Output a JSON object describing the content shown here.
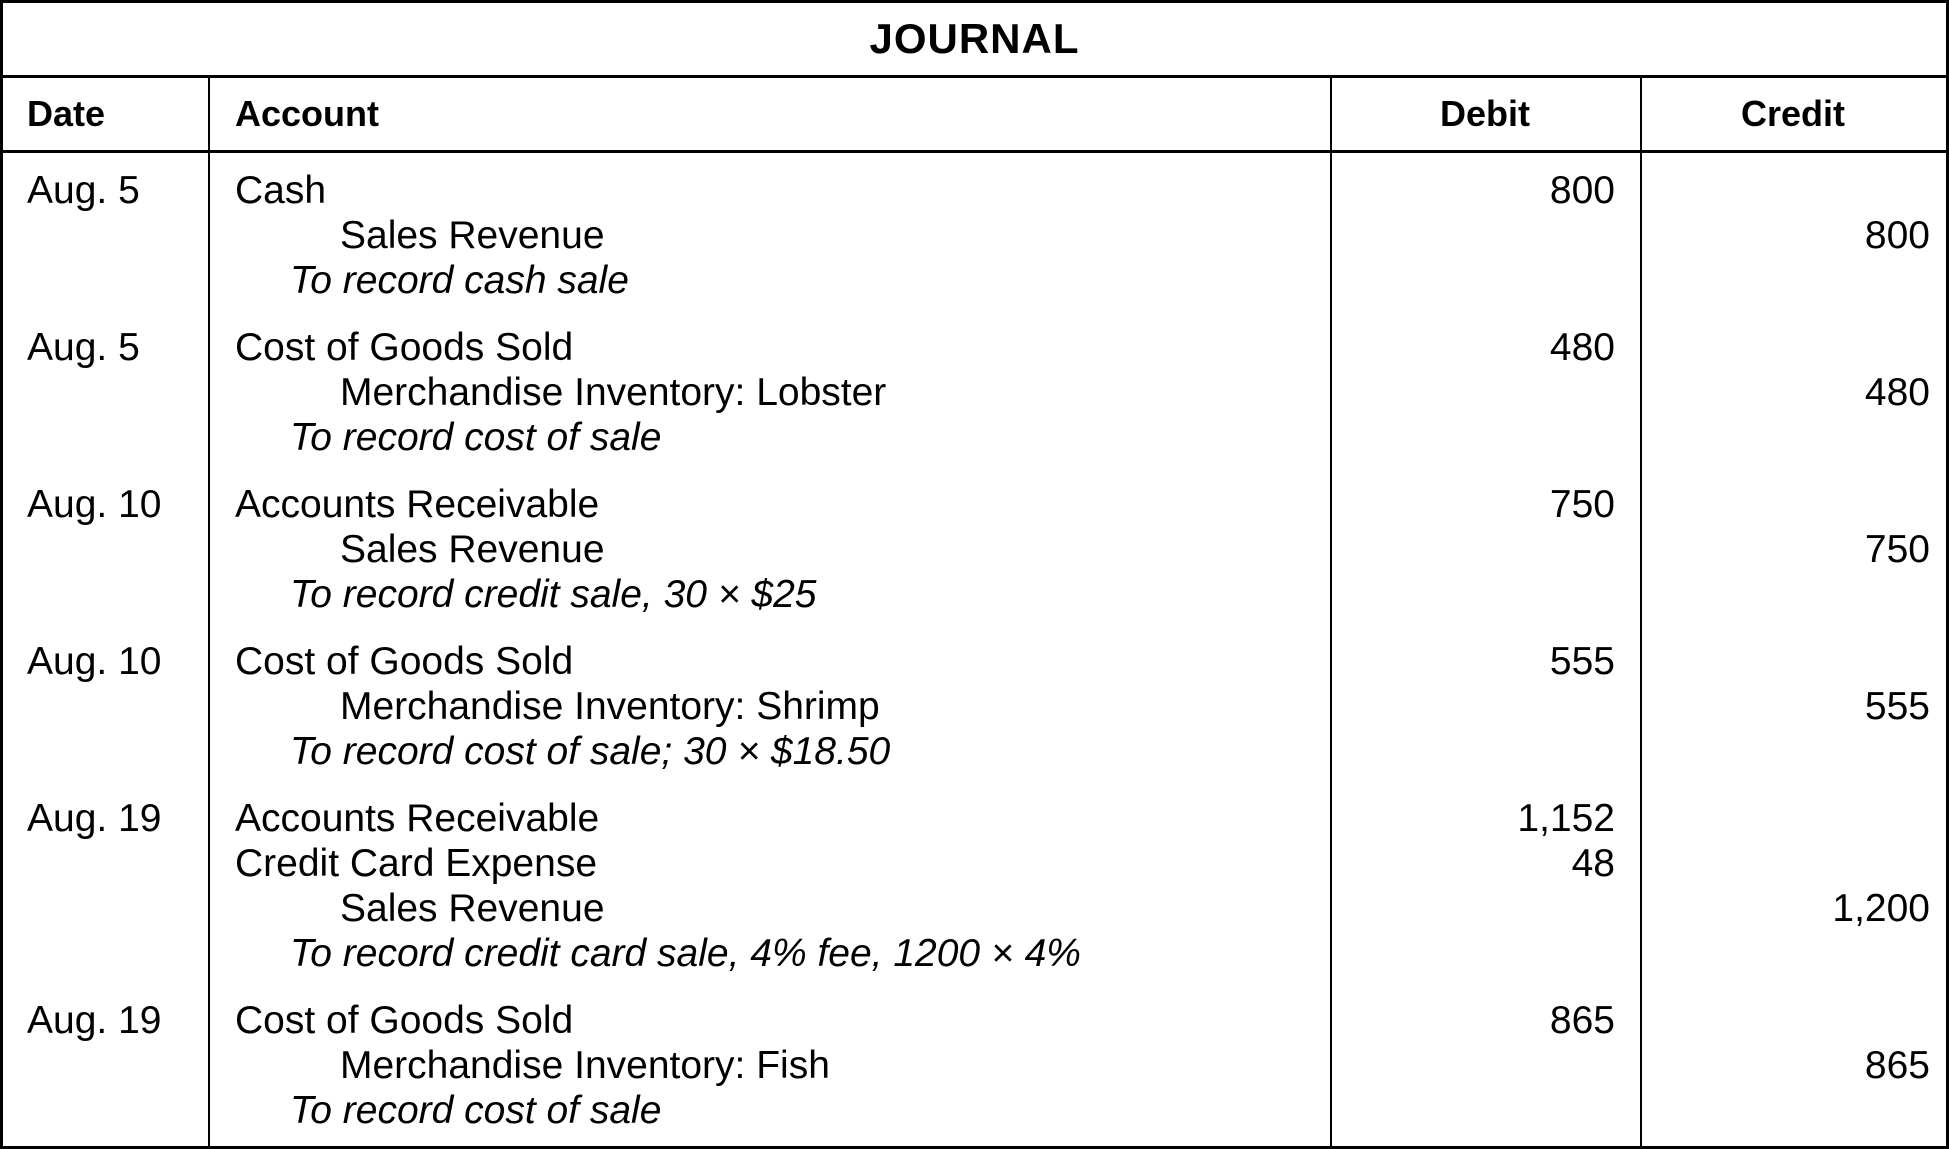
{
  "journal": {
    "title": "JOURNAL",
    "columns": [
      {
        "label": "Date"
      },
      {
        "label": "Account"
      },
      {
        "label": "Debit"
      },
      {
        "label": "Credit"
      }
    ],
    "entries": [
      {
        "date": "Aug. 5",
        "rows": [
          {
            "account": "Cash",
            "type": "debit-account",
            "debit": "800",
            "credit": ""
          },
          {
            "account": "Sales Revenue",
            "type": "credit-account",
            "debit": "",
            "credit": "800"
          },
          {
            "account": "To record cash sale",
            "type": "memo",
            "debit": "",
            "credit": ""
          }
        ]
      },
      {
        "date": "Aug. 5",
        "rows": [
          {
            "account": "Cost of Goods Sold",
            "type": "debit-account",
            "debit": "480",
            "credit": ""
          },
          {
            "account": "Merchandise Inventory: Lobster",
            "type": "credit-account",
            "debit": "",
            "credit": "480"
          },
          {
            "account": "To record cost of sale",
            "type": "memo",
            "debit": "",
            "credit": ""
          }
        ]
      },
      {
        "date": "Aug. 10",
        "rows": [
          {
            "account": "Accounts Receivable",
            "type": "debit-account",
            "debit": "750",
            "credit": ""
          },
          {
            "account": "Sales Revenue",
            "type": "credit-account",
            "debit": "",
            "credit": "750"
          },
          {
            "account": "To record credit sale, 30 × $25",
            "type": "memo",
            "debit": "",
            "credit": ""
          }
        ]
      },
      {
        "date": "Aug. 10",
        "rows": [
          {
            "account": "Cost of Goods Sold",
            "type": "debit-account",
            "debit": "555",
            "credit": ""
          },
          {
            "account": "Merchandise Inventory: Shrimp",
            "type": "credit-account",
            "debit": "",
            "credit": "555"
          },
          {
            "account": "To record cost of sale; 30 × $18.50",
            "type": "memo",
            "debit": "",
            "credit": ""
          }
        ]
      },
      {
        "date": "Aug. 19",
        "rows": [
          {
            "account": "Accounts Receivable",
            "type": "debit-account",
            "debit": "1,152",
            "credit": ""
          },
          {
            "account": "Credit Card Expense",
            "type": "debit-account",
            "debit": "48",
            "credit": ""
          },
          {
            "account": "Sales Revenue",
            "type": "credit-account",
            "debit": "",
            "credit": "1,200"
          },
          {
            "account": "To record credit card sale, 4% fee, 1200 × 4%",
            "type": "memo",
            "debit": "",
            "credit": ""
          }
        ]
      },
      {
        "date": "Aug. 19",
        "rows": [
          {
            "account": "Cost of Goods Sold",
            "type": "debit-account",
            "debit": "865",
            "credit": ""
          },
          {
            "account": "Merchandise Inventory: Fish",
            "type": "credit-account",
            "debit": "",
            "credit": "865"
          },
          {
            "account": "To record cost of sale",
            "type": "memo",
            "debit": "",
            "credit": ""
          }
        ]
      }
    ]
  },
  "colors": {
    "border": "#000000",
    "text": "#000000",
    "background": "#ffffff"
  }
}
